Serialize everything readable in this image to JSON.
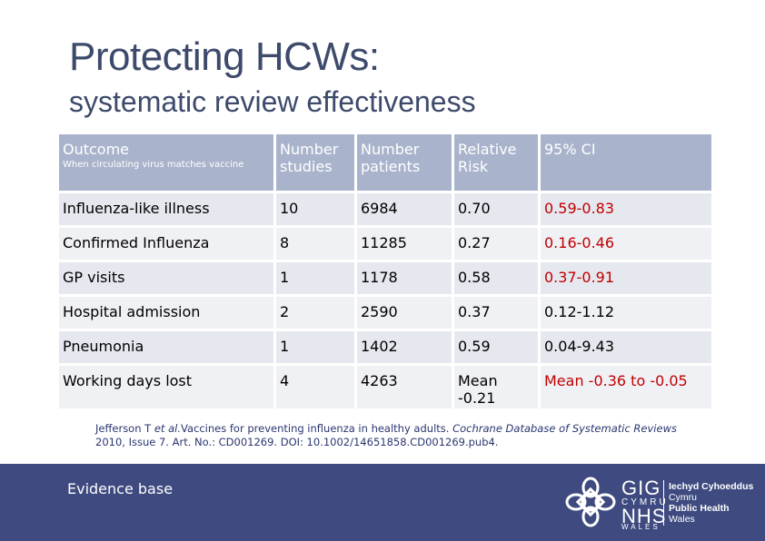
{
  "slide": {
    "title": "Protecting HCWs:",
    "subtitle": "systematic review effectiveness"
  },
  "table": {
    "headers": {
      "outcome": "Outcome",
      "outcome_sub": "When circulating virus matches vaccine",
      "studies": "Number studies",
      "patients": "Number patients",
      "relative_risk": "Relative Risk",
      "ci": "95% CI"
    },
    "rows": [
      {
        "outcome": "Influenza-like illness",
        "studies": "10",
        "patients": "6984",
        "rr": "0.70",
        "ci": "0.59-0.83",
        "ci_color": "#c00000"
      },
      {
        "outcome": "Confirmed Influenza",
        "studies": "8",
        "patients": "11285",
        "rr": "0.27",
        "ci": "0.16-0.46",
        "ci_color": "#c00000"
      },
      {
        "outcome": "GP visits",
        "studies": "1",
        "patients": "1178",
        "rr": "0.58",
        "ci": "0.37-0.91",
        "ci_color": "#c00000"
      },
      {
        "outcome": "Hospital admission",
        "studies": "2",
        "patients": "2590",
        "rr": "0.37",
        "ci": "0.12-1.12",
        "ci_color": "#000000"
      },
      {
        "outcome": "Pneumonia",
        "studies": "1",
        "patients": "1402",
        "rr": "0.59",
        "ci": "0.04-9.43",
        "ci_color": "#000000"
      },
      {
        "outcome": "Working days lost",
        "studies": "4",
        "patients": "4263",
        "rr": "Mean -0.21",
        "ci": "Mean -0.36 to -0.05",
        "ci_color": "#c00000"
      }
    ]
  },
  "citation": {
    "author": "Jefferson T",
    "etal": "et al.",
    "title": "Vaccines for preventing influenza in healthy adults.",
    "journal": "Cochrane Database of Systematic Reviews",
    "details": "2010, Issue 7. Art. No.: CD001269. DOI: 10.1002/14651858.CD001269.pub4."
  },
  "footer": {
    "label": "Evidence base",
    "logo": {
      "icon": "celtic-knot-icon",
      "gig": "GIG",
      "cymru": "CYMRU",
      "nhs": "NHS",
      "wales": "WALES",
      "org_line1": "Iechyd Cyhoeddus",
      "org_line2": "Cymru",
      "org_line3": "Public Health",
      "org_line4": "Wales"
    },
    "background": "#3f4b80"
  }
}
